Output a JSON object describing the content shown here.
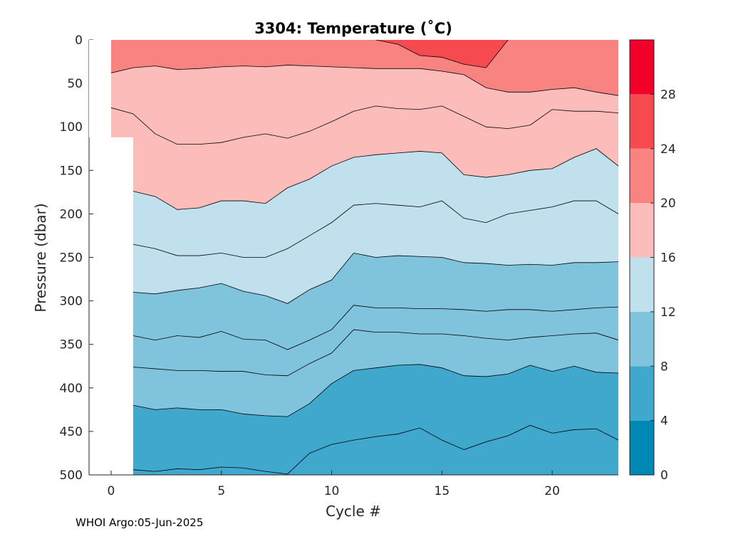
{
  "footer": "WHOI Argo:05-Jun-2025",
  "chart_data": {
    "type": "filled-contour",
    "title": "3304:  Temperature (˚C)",
    "xlabel": "Cycle #",
    "ylabel": "Pressure (dbar)",
    "xlim": [
      -1,
      23
    ],
    "ylim": [
      0,
      500
    ],
    "y_reversed": true,
    "xticks": [
      0,
      5,
      10,
      15,
      20
    ],
    "yticks": [
      0,
      50,
      100,
      150,
      200,
      250,
      300,
      350,
      400,
      450,
      500
    ],
    "colorbar": {
      "levels": [
        0,
        4,
        8,
        12,
        16,
        20,
        24,
        28,
        32
      ],
      "tick_labels": [
        0,
        4,
        8,
        12,
        16,
        20,
        24,
        28
      ],
      "colors": [
        "#0088b4",
        "#40a8cc",
        "#7fc3dc",
        "#bfe0ec",
        "#fcbdba",
        "#f98380",
        "#f54a4f",
        "#f3002a"
      ]
    },
    "cycles": [
      0,
      1,
      2,
      3,
      4,
      5,
      6,
      7,
      8,
      9,
      10,
      11,
      12,
      13,
      14,
      15,
      16,
      17,
      18,
      19,
      20,
      21,
      22,
      23
    ],
    "isotherms": [
      {
        "temp": 26,
        "depths": [
          null,
          null,
          null,
          null,
          null,
          null,
          null,
          null,
          null,
          null,
          null,
          null,
          0,
          5,
          18,
          20,
          28,
          32,
          0,
          null,
          null,
          null,
          null,
          null
        ]
      },
      {
        "temp": 22,
        "depths": [
          38,
          32,
          30,
          34,
          33,
          31,
          30,
          31,
          29,
          30,
          31,
          32,
          33,
          33,
          33,
          36,
          40,
          55,
          60,
          60,
          57,
          55,
          60,
          64
        ]
      },
      {
        "temp": 18,
        "depths": [
          78,
          85,
          108,
          120,
          120,
          118,
          112,
          108,
          113,
          105,
          94,
          82,
          76,
          79,
          80,
          76,
          88,
          100,
          102,
          98,
          80,
          82,
          82,
          84
        ]
      },
      {
        "temp": 14,
        "depths": [
          null,
          174,
          180,
          195,
          193,
          185,
          185,
          188,
          170,
          160,
          145,
          135,
          132,
          130,
          128,
          130,
          155,
          158,
          155,
          150,
          148,
          135,
          125,
          145
        ]
      },
      {
        "temp": 12,
        "depths": [
          null,
          235,
          240,
          248,
          248,
          245,
          250,
          250,
          240,
          225,
          210,
          190,
          188,
          190,
          192,
          185,
          205,
          210,
          200,
          196,
          192,
          185,
          185,
          200
        ]
      },
      {
        "temp": 10,
        "depths": [
          null,
          290,
          292,
          288,
          285,
          280,
          289,
          294,
          303,
          287,
          276,
          245,
          250,
          248,
          249,
          250,
          256,
          257,
          259,
          258,
          259,
          256,
          256,
          255
        ]
      },
      {
        "temp": 9,
        "depths": [
          null,
          340,
          345,
          340,
          342,
          335,
          344,
          345,
          356,
          345,
          333,
          305,
          308,
          308,
          309,
          309,
          310,
          312,
          310,
          310,
          312,
          310,
          308,
          307
        ]
      },
      {
        "temp": 8,
        "depths": [
          null,
          376,
          378,
          380,
          380,
          381,
          381,
          385,
          386,
          372,
          360,
          333,
          336,
          336,
          338,
          338,
          340,
          343,
          345,
          342,
          340,
          338,
          337,
          345
        ]
      },
      {
        "temp": 6,
        "depths": [
          null,
          420,
          425,
          423,
          425,
          425,
          430,
          432,
          433,
          418,
          395,
          380,
          377,
          374,
          373,
          377,
          386,
          387,
          384,
          374,
          381,
          375,
          382,
          383
        ]
      },
      {
        "temp": 5,
        "depths": [
          null,
          494,
          496,
          493,
          494,
          491,
          492,
          496,
          499,
          475,
          465,
          460,
          456,
          453,
          446,
          460,
          471,
          462,
          455,
          443,
          452,
          448,
          447,
          460
        ]
      }
    ]
  }
}
